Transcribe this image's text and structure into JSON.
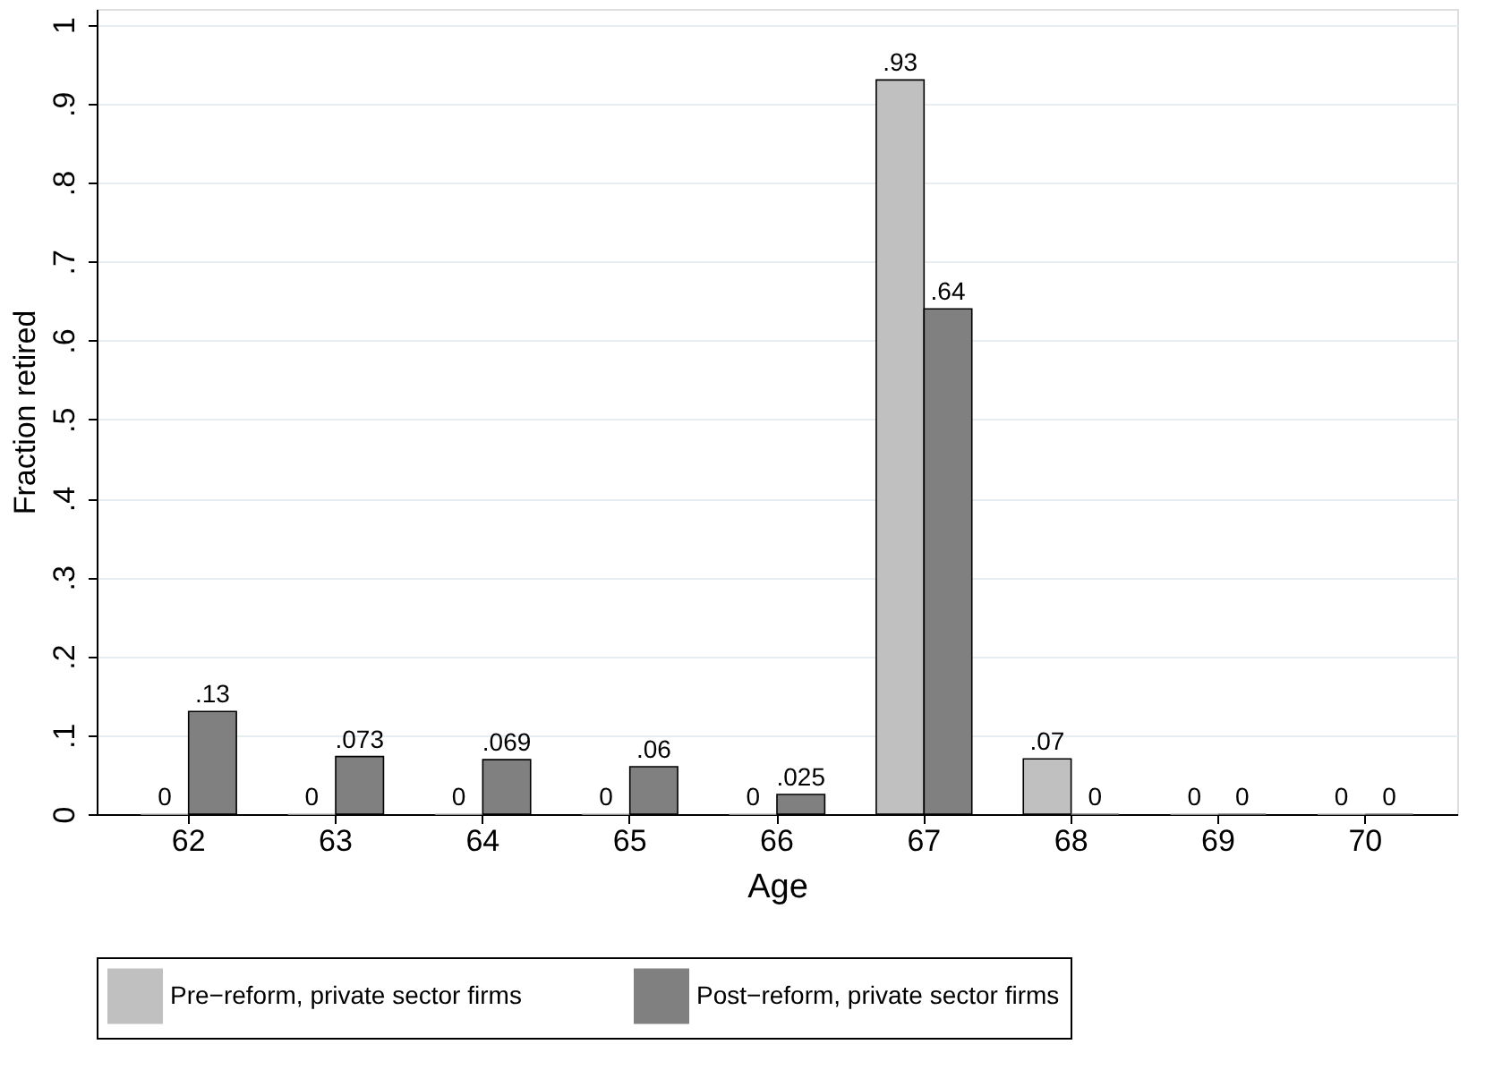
{
  "chart_data": {
    "type": "bar",
    "xlabel": "Age",
    "ylabel": "Fraction retired",
    "categories": [
      "62",
      "63",
      "64",
      "65",
      "66",
      "67",
      "68",
      "69",
      "70"
    ],
    "series": [
      {
        "name": "Pre−reform, private sector firms",
        "color": "#c0c0c0",
        "values": [
          0,
          0,
          0,
          0,
          0,
          0.93,
          0.07,
          0,
          0
        ],
        "value_labels": [
          "0",
          "0",
          "0",
          "0",
          "0",
          ".93",
          ".07",
          "0",
          "0"
        ]
      },
      {
        "name": "Post−reform, private sector firms",
        "color": "#808080",
        "values": [
          0.13,
          0.073,
          0.069,
          0.06,
          0.025,
          0.64,
          0,
          0,
          0
        ],
        "value_labels": [
          ".13",
          ".073",
          ".069",
          ".06",
          ".025",
          ".64",
          "0",
          "0",
          "0"
        ]
      }
    ],
    "ylim": [
      0,
      1.02
    ],
    "yticks": [
      0,
      {
        "value": 0.1,
        "label": ".1"
      },
      {
        "value": 0.2,
        "label": ".2"
      },
      {
        "value": 0.3,
        "label": ".3"
      },
      {
        "value": 0.4,
        "label": ".4"
      },
      {
        "value": 0.5,
        "label": ".5"
      },
      {
        "value": 0.6,
        "label": ".6"
      },
      {
        "value": 0.7,
        "label": ".7"
      },
      {
        "value": 0.8,
        "label": ".8"
      },
      {
        "value": 0.9,
        "label": ".9"
      },
      1
    ],
    "grid": "y",
    "legend": "bottom"
  }
}
